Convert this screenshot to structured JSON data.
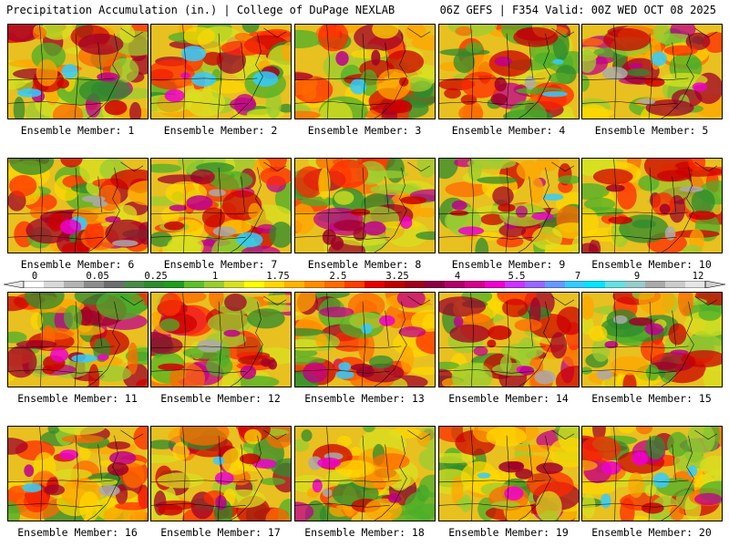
{
  "header": {
    "title": "Precipitation Accumulation (in.) | College of DuPage NEXLAB",
    "run_info": "06Z GEFS | F354 Valid: 00Z WED OCT 08 2025"
  },
  "members": [
    {
      "label": "Ensemble Member: 1"
    },
    {
      "label": "Ensemble Member: 2"
    },
    {
      "label": "Ensemble Member: 3"
    },
    {
      "label": "Ensemble Member: 4"
    },
    {
      "label": "Ensemble Member: 5"
    },
    {
      "label": "Ensemble Member: 6"
    },
    {
      "label": "Ensemble Member: 7"
    },
    {
      "label": "Ensemble Member: 8"
    },
    {
      "label": "Ensemble Member: 9"
    },
    {
      "label": "Ensemble Member: 10"
    },
    {
      "label": "Ensemble Member: 11"
    },
    {
      "label": "Ensemble Member: 12"
    },
    {
      "label": "Ensemble Member: 13"
    },
    {
      "label": "Ensemble Member: 14"
    },
    {
      "label": "Ensemble Member: 15"
    },
    {
      "label": "Ensemble Member: 16"
    },
    {
      "label": "Ensemble Member: 17"
    },
    {
      "label": "Ensemble Member: 18"
    },
    {
      "label": "Ensemble Member: 19"
    },
    {
      "label": "Ensemble Member: 20"
    }
  ],
  "colorbar": {
    "tick_labels": [
      "0",
      "0.05",
      "0.25",
      "1",
      "1.75",
      "2.5",
      "3.25",
      "4",
      "5.5",
      "7",
      "9",
      "12"
    ],
    "colors": [
      "#ffffff",
      "#d9d9d9",
      "#b3b3b3",
      "#8c8c8c",
      "#6e6e6e",
      "#4a8a4a",
      "#2e8b2e",
      "#1f9e1f",
      "#5fbf2a",
      "#9acd32",
      "#d8e020",
      "#ffff00",
      "#ffd700",
      "#ffb300",
      "#ff8c00",
      "#ff6a00",
      "#ff3d00",
      "#e60000",
      "#c00000",
      "#a0001a",
      "#8b0045",
      "#b0006a",
      "#d4008c",
      "#ee00cc",
      "#cc33ff",
      "#9966ff",
      "#6699ff",
      "#33ccff",
      "#00e5ff",
      "#66e0e0",
      "#99cccc",
      "#aaaaaa",
      "#cccccc",
      "#e6e6e6"
    ]
  }
}
